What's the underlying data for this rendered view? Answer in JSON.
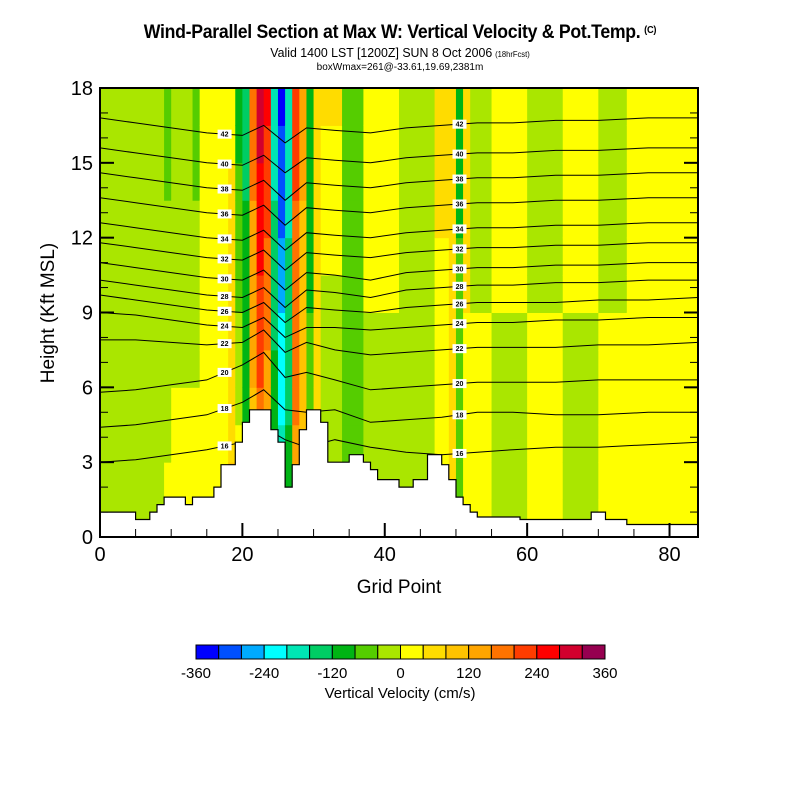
{
  "header": {
    "title": "Wind-Parallel Section at Max W: Vertical Velocity & Pot.Temp.",
    "copyright": "(C)",
    "valid_line": "Valid 1400 LST [1200Z] SUN 8 Oct 2006",
    "forecast_tag": "(18hrFcst)",
    "box_line": "boxWmax=261@-33.61,19.69,2381m"
  },
  "chart_data": {
    "type": "heatmap",
    "title": "Wind-Parallel Section at Max W: Vertical Velocity & Pot.Temp.",
    "xlabel": "Grid Point",
    "ylabel": "Height (Kft MSL)",
    "xlim": [
      0,
      84
    ],
    "ylim": [
      0,
      18
    ],
    "x_ticks": [
      0,
      20,
      40,
      60,
      80
    ],
    "x_minor_step": 5,
    "y_ticks": [
      0,
      3,
      6,
      9,
      12,
      15,
      18
    ],
    "grid": false,
    "colorbar": {
      "title": "Vertical Velocity (cm/s)",
      "placement": "bottom",
      "levels": [
        -360,
        -320,
        -280,
        -240,
        -200,
        -160,
        -120,
        -80,
        -40,
        0,
        40,
        80,
        120,
        160,
        200,
        240,
        280,
        320,
        360
      ],
      "tick_labels": [
        "-360",
        "-240",
        "-120",
        "0",
        "120",
        "240",
        "360"
      ],
      "tick_values": [
        -360,
        -240,
        -120,
        0,
        120,
        240,
        360
      ],
      "colors": [
        "#0000ff",
        "#0050ff",
        "#00aaff",
        "#00ffff",
        "#00e6b4",
        "#00cd64",
        "#00b414",
        "#55cd00",
        "#aae600",
        "#ffff00",
        "#ffdc00",
        "#ffc300",
        "#ffa500",
        "#ff7300",
        "#ff3c00",
        "#ff0000",
        "#d2002d",
        "#960050"
      ]
    },
    "terrain_kft": {
      "x": [
        0,
        1,
        2,
        3,
        4,
        5,
        6,
        7,
        8,
        9,
        10,
        11,
        12,
        13,
        14,
        15,
        16,
        17,
        18,
        19,
        20,
        21,
        22,
        23,
        24,
        25,
        26,
        27,
        28,
        29,
        30,
        31,
        32,
        33,
        34,
        35,
        36,
        37,
        38,
        39,
        40,
        41,
        42,
        43,
        44,
        45,
        46,
        47,
        48,
        49,
        50,
        51,
        52,
        53,
        54,
        55,
        56,
        57,
        58,
        59,
        60,
        61,
        62,
        63,
        64,
        65,
        66,
        67,
        68,
        69,
        70,
        71,
        72,
        73,
        74,
        75,
        76,
        77,
        78,
        79,
        80,
        81,
        82,
        83,
        84
      ],
      "h": [
        1.0,
        1.0,
        1.0,
        1.0,
        1.0,
        0.7,
        0.7,
        1.0,
        1.3,
        1.6,
        1.6,
        1.6,
        1.3,
        1.6,
        1.6,
        1.6,
        2.0,
        2.9,
        2.9,
        3.8,
        4.6,
        5.1,
        5.1,
        5.1,
        4.3,
        3.8,
        2.0,
        2.9,
        4.3,
        5.1,
        5.1,
        4.6,
        3.0,
        3.0,
        3.0,
        3.3,
        3.3,
        3.0,
        2.7,
        2.3,
        2.3,
        2.3,
        2.0,
        2.0,
        2.3,
        2.3,
        3.3,
        3.3,
        2.9,
        2.3,
        1.6,
        1.3,
        1.0,
        0.8,
        0.8,
        0.8,
        0.8,
        0.8,
        0.8,
        0.7,
        0.7,
        0.7,
        0.7,
        0.7,
        0.7,
        0.7,
        0.7,
        0.7,
        0.7,
        1.0,
        1.0,
        0.7,
        0.7,
        0.7,
        0.5,
        0.5,
        0.5,
        0.5,
        0.5,
        0.5,
        0.5,
        0.5,
        0.5,
        0.5,
        0.5
      ]
    },
    "vertical_velocity_columns": [
      {
        "x0": 0,
        "x1": 9,
        "w_upper": -40,
        "w_lower": -20
      },
      {
        "x0": 9,
        "x1": 10,
        "w_upper": -60,
        "w_lower": 10
      },
      {
        "x0": 10,
        "x1": 13,
        "w_upper": -40,
        "w_lower": 20
      },
      {
        "x0": 13,
        "x1": 14,
        "w_upper": -60,
        "w_lower": 30
      },
      {
        "x0": 14,
        "x1": 18,
        "w_upper": 20,
        "w_lower": 20
      },
      {
        "x0": 18,
        "x1": 19,
        "w_upper": 30,
        "w_lower": 90
      },
      {
        "x0": 19,
        "x1": 20,
        "w_upper": -100,
        "w_lower": 30
      },
      {
        "x0": 20,
        "x1": 21,
        "w_upper": -140,
        "w_lower": -60
      },
      {
        "x0": 21,
        "x1": 22,
        "w_upper": 180,
        "w_lower": 90
      },
      {
        "x0": 22,
        "x1": 23,
        "w_upper": 300,
        "w_lower": 150
      },
      {
        "x0": 23,
        "x1": 24,
        "w_upper": 250,
        "w_lower": 100
      },
      {
        "x0": 24,
        "x1": 25,
        "w_upper": -200,
        "w_lower": -60
      },
      {
        "x0": 25,
        "x1": 26,
        "w_upper": -340,
        "w_lower": -150
      },
      {
        "x0": 26,
        "x1": 27,
        "w_upper": -200,
        "w_lower": -90
      },
      {
        "x0": 27,
        "x1": 28,
        "w_upper": 220,
        "w_lower": 140
      },
      {
        "x0": 28,
        "x1": 29,
        "w_upper": 130,
        "w_lower": 90
      },
      {
        "x0": 29,
        "x1": 30,
        "w_upper": -100,
        "w_lower": -60
      },
      {
        "x0": 30,
        "x1": 31,
        "w_upper": 60,
        "w_lower": 40
      },
      {
        "x0": 31,
        "x1": 34,
        "w_upper": 50,
        "w_lower": -60
      },
      {
        "x0": 34,
        "x1": 37,
        "w_upper": -40,
        "w_lower": -80
      },
      {
        "x0": 37,
        "x1": 42,
        "w_upper": 20,
        "w_lower": -20
      },
      {
        "x0": 42,
        "x1": 47,
        "w_upper": -20,
        "w_lower": -40
      },
      {
        "x0": 47,
        "x1": 49,
        "w_upper": 50,
        "w_lower": 20
      },
      {
        "x0": 49,
        "x1": 50,
        "w_upper": 60,
        "w_lower": 70
      },
      {
        "x0": 50,
        "x1": 51,
        "w_upper": -100,
        "w_lower": -40
      },
      {
        "x0": 51,
        "x1": 52,
        "w_upper": 60,
        "w_lower": 20
      },
      {
        "x0": 52,
        "x1": 55,
        "w_upper": -20,
        "w_lower": 20
      },
      {
        "x0": 55,
        "x1": 60,
        "w_upper": 20,
        "w_lower": -20
      },
      {
        "x0": 60,
        "x1": 65,
        "w_upper": -20,
        "w_lower": 20
      },
      {
        "x0": 65,
        "x1": 70,
        "w_upper": 20,
        "w_lower": -20
      },
      {
        "x0": 70,
        "x1": 74,
        "w_upper": -20,
        "w_lower": 20
      },
      {
        "x0": 74,
        "x1": 84,
        "w_upper": 20,
        "w_lower": 20
      }
    ],
    "isentropes_kft": [
      {
        "label": "16",
        "y": [
          3.0,
          3.1,
          3.3,
          3.5,
          3.8,
          4.4,
          3.9,
          3.6,
          3.9,
          3.6,
          3.4,
          3.3,
          3.4,
          3.5,
          3.6,
          3.6,
          3.7,
          3.8
        ]
      },
      {
        "label": "18",
        "y": [
          4.4,
          4.5,
          4.7,
          4.9,
          5.4,
          5.9,
          5.1,
          5.0,
          5.1,
          4.6,
          4.7,
          4.8,
          5.0,
          5.0,
          4.9,
          4.9,
          5.0,
          5.0
        ]
      },
      {
        "label": "20",
        "y": [
          5.8,
          5.9,
          6.1,
          6.3,
          6.9,
          7.4,
          6.4,
          6.6,
          6.3,
          5.9,
          6.0,
          6.1,
          6.2,
          6.2,
          6.2,
          6.3,
          6.3,
          6.3
        ]
      },
      {
        "label": "22",
        "y": [
          7.9,
          7.9,
          7.8,
          7.7,
          7.8,
          8.3,
          7.4,
          7.8,
          7.5,
          7.3,
          7.4,
          7.5,
          7.6,
          7.6,
          7.6,
          7.7,
          7.7,
          7.8
        ]
      },
      {
        "label": "24",
        "y": [
          9.0,
          8.9,
          8.7,
          8.5,
          8.4,
          8.8,
          8.0,
          8.4,
          8.4,
          8.3,
          8.4,
          8.5,
          8.6,
          8.6,
          8.7,
          8.7,
          8.8,
          8.8
        ]
      },
      {
        "label": "26",
        "y": [
          9.7,
          9.5,
          9.3,
          9.1,
          9.0,
          9.4,
          8.6,
          9.2,
          9.1,
          9.0,
          9.2,
          9.3,
          9.4,
          9.4,
          9.4,
          9.5,
          9.5,
          9.6
        ]
      },
      {
        "label": "28",
        "y": [
          10.3,
          10.1,
          9.9,
          9.7,
          9.6,
          10.0,
          9.2,
          9.9,
          9.8,
          9.6,
          9.9,
          10.0,
          10.1,
          10.1,
          10.2,
          10.2,
          10.3,
          10.3
        ]
      },
      {
        "label": "30",
        "y": [
          11.0,
          10.8,
          10.6,
          10.4,
          10.3,
          10.7,
          9.9,
          10.6,
          10.5,
          10.3,
          10.6,
          10.7,
          10.8,
          10.8,
          10.9,
          10.9,
          11.0,
          11.0
        ]
      },
      {
        "label": "32",
        "y": [
          11.8,
          11.6,
          11.4,
          11.2,
          11.1,
          11.5,
          10.7,
          11.4,
          11.3,
          11.2,
          11.4,
          11.5,
          11.6,
          11.6,
          11.7,
          11.7,
          11.8,
          11.8
        ]
      },
      {
        "label": "34",
        "y": [
          12.6,
          12.4,
          12.2,
          12.0,
          11.9,
          12.3,
          11.5,
          12.2,
          12.1,
          12.0,
          12.2,
          12.3,
          12.4,
          12.4,
          12.5,
          12.5,
          12.6,
          12.6
        ]
      },
      {
        "label": "36",
        "y": [
          13.6,
          13.4,
          13.2,
          13.0,
          12.9,
          13.3,
          12.5,
          13.2,
          13.1,
          13.0,
          13.2,
          13.3,
          13.4,
          13.4,
          13.5,
          13.5,
          13.6,
          13.6
        ]
      },
      {
        "label": "38",
        "y": [
          14.6,
          14.4,
          14.2,
          14.0,
          13.9,
          14.3,
          13.5,
          14.2,
          14.1,
          14.0,
          14.2,
          14.3,
          14.4,
          14.4,
          14.5,
          14.5,
          14.6,
          14.6
        ]
      },
      {
        "label": "40",
        "y": [
          15.6,
          15.4,
          15.2,
          15.0,
          14.9,
          15.3,
          14.6,
          15.2,
          15.1,
          15.0,
          15.2,
          15.3,
          15.4,
          15.4,
          15.5,
          15.5,
          15.6,
          15.6
        ]
      },
      {
        "label": "42",
        "y": [
          16.8,
          16.6,
          16.4,
          16.2,
          16.1,
          16.5,
          15.8,
          16.4,
          16.3,
          16.2,
          16.4,
          16.5,
          16.6,
          16.6,
          16.7,
          16.7,
          16.8,
          16.8
        ]
      }
    ],
    "isentrope_x": [
      0,
      5,
      10,
      15,
      20,
      23,
      26,
      29,
      33,
      38,
      43,
      48,
      53,
      58,
      64,
      70,
      77,
      84
    ]
  }
}
